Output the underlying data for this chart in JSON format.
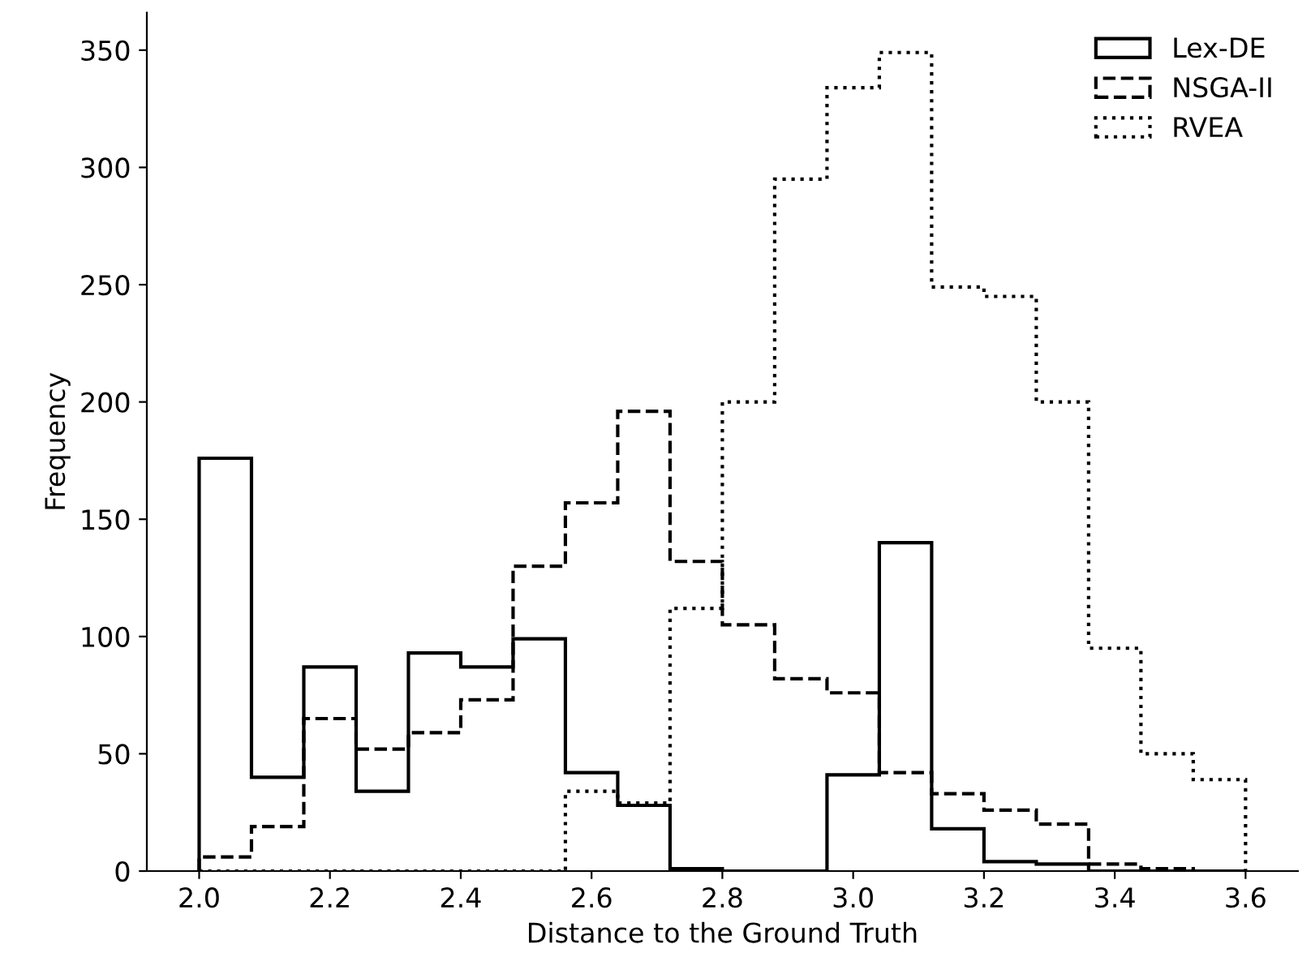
{
  "chart_data": {
    "type": "histogram",
    "xlabel": "Distance to the Ground Truth",
    "ylabel": "Frequency",
    "bins": [
      2.0,
      2.08,
      2.16,
      2.24,
      2.32,
      2.4,
      2.48,
      2.56,
      2.64,
      2.72,
      2.8,
      2.88,
      2.96,
      3.04,
      3.12,
      3.2,
      3.28,
      3.36,
      3.44,
      3.52,
      3.6
    ],
    "series": [
      {
        "name": "Lex-DE",
        "color": "#000000",
        "line_style": "solid",
        "values": [
          176,
          40,
          87,
          34,
          93,
          87,
          99,
          42,
          28,
          1,
          0,
          0,
          41,
          140,
          18,
          4,
          3,
          0,
          0,
          0
        ]
      },
      {
        "name": "NSGA-II",
        "color": "#000000",
        "line_style": "dashed",
        "values": [
          6,
          19,
          65,
          52,
          59,
          73,
          130,
          157,
          196,
          132,
          105,
          82,
          76,
          42,
          33,
          26,
          20,
          3,
          1,
          0
        ]
      },
      {
        "name": "RVEA",
        "color": "#000000",
        "line_style": "dotted",
        "values": [
          0,
          0,
          0,
          0,
          0,
          0,
          0,
          34,
          29,
          112,
          200,
          295,
          334,
          349,
          249,
          245,
          200,
          95,
          50,
          39
        ]
      }
    ],
    "xlim": [
      1.92,
      3.68
    ],
    "ylim": [
      0,
      366
    ],
    "xticks": [
      {
        "value": 2.0,
        "label": "2.0"
      },
      2.2,
      2.4,
      2.6,
      2.8,
      {
        "value": 3.0,
        "label": "3.0"
      },
      3.2,
      3.4,
      3.6
    ],
    "yticks": [
      0,
      50,
      100,
      150,
      200,
      250,
      300,
      350
    ],
    "legend": "top right",
    "grid": false
  }
}
